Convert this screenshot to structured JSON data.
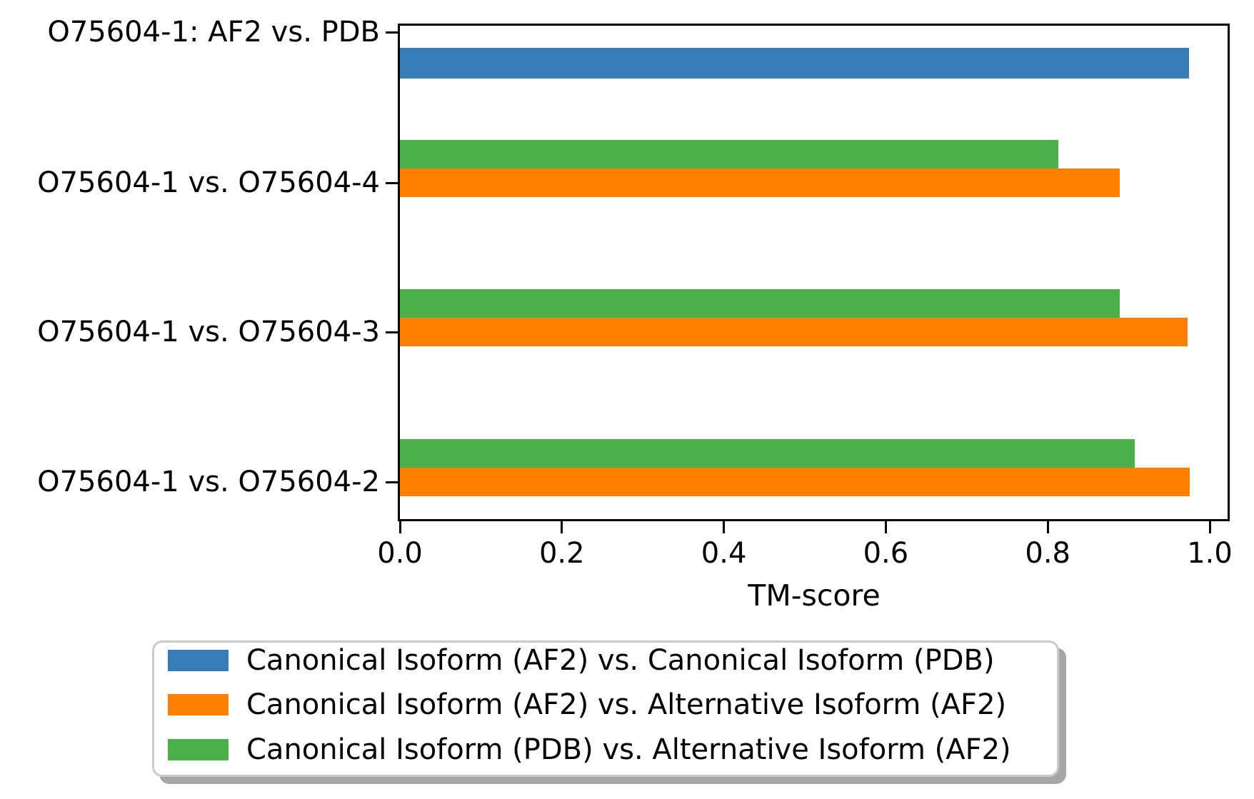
{
  "figure": {
    "background": "#ffffff",
    "axis_color": "#000000",
    "legend_border_color": "#cbcbcb",
    "legend_shadow_color": "#a6a6a6"
  },
  "chart_data": {
    "type": "bar",
    "orientation": "horizontal",
    "title": "",
    "xlabel": "TM-score",
    "ylabel": "",
    "xlim": [
      0.0,
      1.024
    ],
    "grid": false,
    "xticks": [
      0.0,
      0.2,
      0.4,
      0.6,
      0.8,
      1.0
    ],
    "xtick_labels": [
      "0.0",
      "0.2",
      "0.4",
      "0.6",
      "0.8",
      "1.0"
    ],
    "categories": [
      "O75604-1: AF2 vs. PDB",
      "O75604-1 vs. O75604-4",
      "O75604-1 vs. O75604-3",
      "O75604-1 vs. O75604-2"
    ],
    "series": [
      {
        "name": "Canonical Isoform (AF2) vs. Canonical Isoform (PDB)",
        "color": "#377eb8",
        "values": [
          0.974,
          null,
          null,
          null
        ]
      },
      {
        "name": "Canonical Isoform (AF2) vs. Alternative Isoform (AF2)",
        "color": "#ff7f00",
        "values": [
          null,
          0.889,
          0.973,
          0.975
        ]
      },
      {
        "name": "Canonical Isoform (PDB) vs. Alternative Isoform (AF2)",
        "color": "#4daf4a",
        "values": [
          null,
          0.813,
          0.889,
          0.907
        ]
      }
    ],
    "legend_position": "bottom"
  }
}
